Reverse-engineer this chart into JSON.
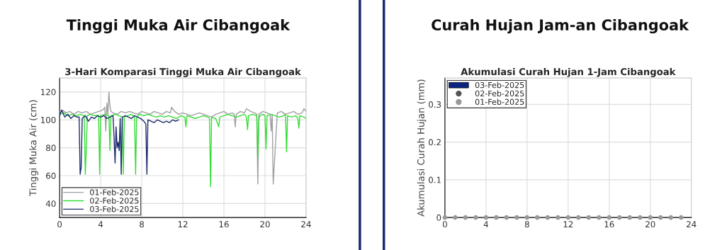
{
  "chart_data": [
    {
      "type": "line",
      "title": "Tinggi Muka Air Cibangoak",
      "subtitle": "3-Hari Komparasi Tinggi Muka Air Cibangoak",
      "ylabel": "Tinggi Muka Air (cm)",
      "xlim": [
        0,
        24
      ],
      "xticks": [
        0,
        4,
        8,
        12,
        16,
        20,
        24
      ],
      "ylim": [
        30,
        130
      ],
      "yticks": [
        40,
        60,
        80,
        100,
        120
      ],
      "grid": true,
      "legend": "bottom left",
      "series": [
        {
          "name": "01-Feb-2025",
          "color": "#a0a0a0",
          "x": [
            0,
            0.3,
            0.6,
            1,
            1.4,
            1.8,
            2.2,
            2.6,
            3,
            3.4,
            3.8,
            4.2,
            4.4,
            4.5,
            4.6,
            4.7,
            4.8,
            4.9,
            5.0,
            5.2,
            5.6,
            6,
            6.4,
            6.8,
            7.2,
            7.6,
            8,
            8.4,
            8.8,
            9.2,
            9.6,
            10,
            10.4,
            10.8,
            10.9,
            11.2,
            11.6,
            12,
            12.4,
            12.8,
            13.2,
            13.6,
            14,
            14.4,
            14.8,
            15.2,
            15.6,
            16,
            16.4,
            16.8,
            17.0,
            17.1,
            17.2,
            17.6,
            18,
            18.2,
            18.6,
            19,
            19.2,
            19.3,
            19.4,
            19.8,
            20.2,
            20.5,
            20.6,
            20.7,
            20.8,
            21.2,
            21.6,
            22,
            22.4,
            22.8,
            23.2,
            23.6,
            23.8,
            24
          ],
          "values": [
            106,
            107,
            105,
            106,
            104,
            106,
            105,
            106,
            104,
            105,
            106,
            107,
            109,
            92,
            112,
            104,
            120,
            110,
            106,
            105,
            104,
            106,
            105,
            106,
            105,
            104,
            106,
            105,
            104,
            106,
            105,
            104,
            106,
            105,
            109,
            106,
            104,
            105,
            104,
            103,
            104,
            105,
            104,
            103,
            102,
            104,
            105,
            106,
            104,
            105,
            104,
            95,
            104,
            106,
            105,
            108,
            106,
            105,
            104,
            54,
            104,
            106,
            105,
            104,
            92,
            104,
            54,
            105,
            106,
            104,
            105,
            106,
            104,
            105,
            108,
            106
          ]
        },
        {
          "name": "02-Feb-2025",
          "color": "#33dd33",
          "x": [
            0,
            0.4,
            0.8,
            1.2,
            1.6,
            2.0,
            2.4,
            2.5,
            2.6,
            2.7,
            3.0,
            3.4,
            3.8,
            3.9,
            4.0,
            4.4,
            4.8,
            4.9,
            5.0,
            5.4,
            5.8,
            6.1,
            6.2,
            6.3,
            6.6,
            7.0,
            7.3,
            7.4,
            7.5,
            7.8,
            8.2,
            8.6,
            9,
            9.4,
            9.8,
            10.2,
            10.6,
            11,
            11.4,
            11.8,
            12.2,
            12.3,
            12.4,
            12.8,
            13.2,
            13.6,
            14,
            14.4,
            14.6,
            14.7,
            14.8,
            15.2,
            15.5,
            15.6,
            16,
            16.4,
            16.8,
            17.2,
            17.6,
            18,
            18.2,
            18.3,
            18.4,
            18.8,
            19.2,
            19.3,
            19.4,
            19.5,
            19.8,
            20.0,
            20.1,
            20.2,
            20.6,
            21,
            21.4,
            21.8,
            22.0,
            22.1,
            22.2,
            22.6,
            23,
            23.2,
            23.3,
            23.4,
            23.8,
            24
          ],
          "values": [
            104,
            105,
            103,
            104,
            103,
            104,
            103,
            61,
            80,
            103,
            104,
            103,
            103,
            61,
            103,
            104,
            103,
            78,
            103,
            104,
            103,
            102,
            61,
            102,
            103,
            104,
            102,
            61,
            102,
            104,
            103,
            104,
            103,
            102,
            103,
            102,
            103,
            102,
            101,
            103,
            102,
            95,
            103,
            102,
            101,
            102,
            103,
            102,
            101,
            52,
            102,
            101,
            95,
            102,
            103,
            104,
            103,
            102,
            103,
            104,
            102,
            93,
            103,
            104,
            103,
            73,
            100,
            103,
            104,
            103,
            79,
            103,
            104,
            103,
            102,
            103,
            104,
            77,
            103,
            102,
            103,
            101,
            94,
            103,
            102,
            101
          ]
        },
        {
          "name": "03-Feb-2025",
          "color": "#1a2a6c",
          "x": [
            0,
            0.2,
            0.5,
            0.8,
            1.1,
            1.4,
            1.7,
            1.9,
            2.0,
            2.1,
            2.2,
            2.5,
            2.8,
            3.1,
            3.4,
            3.7,
            4.0,
            4.3,
            4.6,
            4.9,
            5.2,
            5.3,
            5.4,
            5.5,
            5.6,
            5.7,
            5.8,
            5.9,
            6.0,
            6.1,
            6.4,
            6.7,
            7.0,
            7.3,
            7.6,
            7.9,
            8.2,
            8.4,
            8.5,
            8.6,
            8.9,
            9.2,
            9.5,
            9.8,
            10.1,
            10.4,
            10.7,
            11.0,
            11.3,
            11.6
          ],
          "values": [
            103,
            107,
            102,
            104,
            101,
            103,
            102,
            102,
            61,
            66,
            101,
            103,
            99,
            102,
            101,
            103,
            102,
            103,
            101,
            102,
            103,
            88,
            69,
            95,
            80,
            84,
            78,
            101,
            61,
            102,
            103,
            102,
            101,
            103,
            102,
            101,
            99,
            97,
            61,
            100,
            99,
            98,
            100,
            99,
            98,
            99,
            98,
            100,
            99,
            100
          ]
        }
      ]
    },
    {
      "type": "scatter",
      "title": "Curah Hujan Jam-an Cibangoak",
      "subtitle": "Akumulasi Curah Hujan 1-Jam Cibangoak",
      "ylabel": "Akumulasi Curah Hujan (mm)",
      "xlim": [
        0,
        24
      ],
      "xticks": [
        0,
        4,
        8,
        12,
        16,
        20,
        24
      ],
      "ylim": [
        0,
        0.37
      ],
      "yticks": [
        0,
        0.1,
        0.2,
        0.3
      ],
      "grid": true,
      "legend": "top left",
      "marker": "circle",
      "series": [
        {
          "name": "03-Feb-2025",
          "type": "bar",
          "color": "#0d2180",
          "x": [
            0,
            1,
            2,
            3,
            4,
            5,
            6,
            7,
            8,
            9,
            10,
            11
          ],
          "values": [
            0,
            0,
            0,
            0,
            0,
            0,
            0,
            0,
            0,
            0,
            0,
            0
          ]
        },
        {
          "name": "02-Feb-2025",
          "type": "scatter",
          "color": "#555555"
        },
        {
          "name": "01-Feb-2025",
          "type": "scatter",
          "color": "#999999",
          "x": [
            0,
            1,
            2,
            3,
            4,
            5,
            6,
            7,
            8,
            9,
            10,
            11,
            12,
            13,
            14,
            15,
            16,
            17,
            18,
            19,
            20,
            21,
            22,
            23
          ],
          "values": [
            0,
            0,
            0,
            0,
            0,
            0,
            0,
            0,
            0,
            0,
            0,
            0,
            0,
            0,
            0,
            0,
            0,
            0,
            0,
            0,
            0,
            0,
            0,
            0
          ]
        }
      ]
    }
  ]
}
